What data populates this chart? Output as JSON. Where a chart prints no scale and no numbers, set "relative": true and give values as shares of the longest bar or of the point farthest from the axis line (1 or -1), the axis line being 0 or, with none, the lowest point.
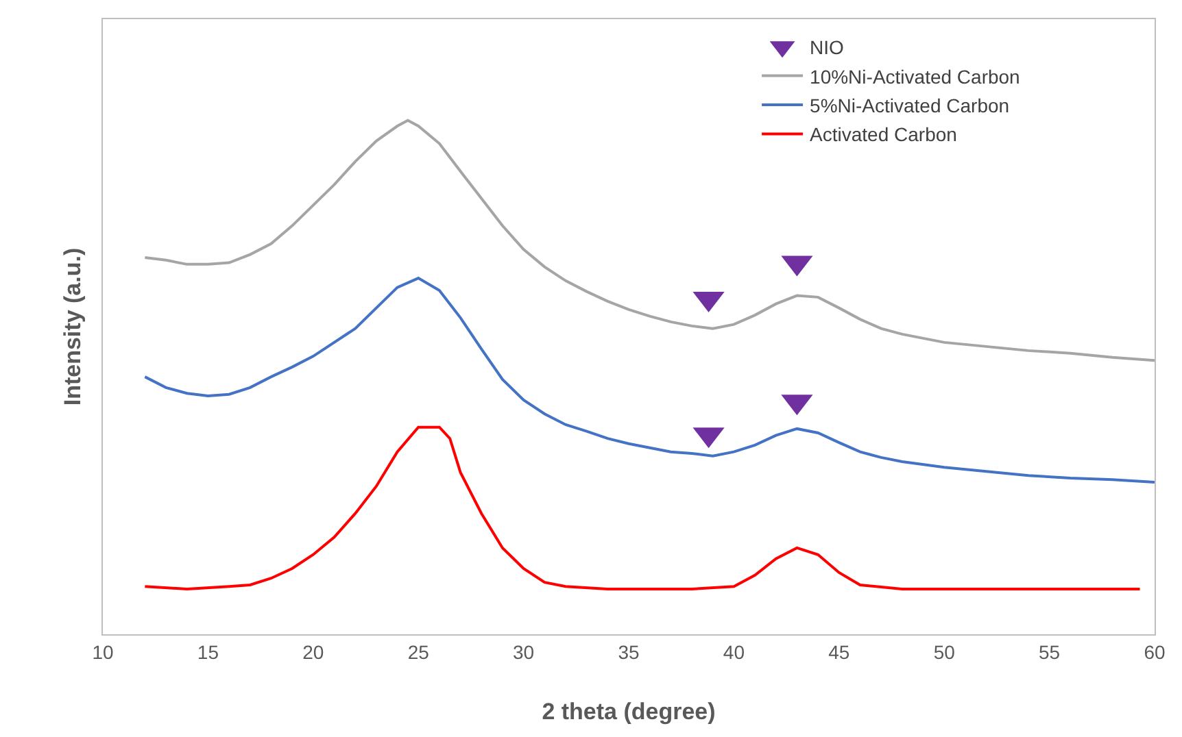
{
  "chart_data": {
    "type": "line",
    "relative": true,
    "xlabel": "2 theta (degree)",
    "ylabel": "Intensity (a.u.)",
    "xlim": [
      10,
      60
    ],
    "xticks": [
      10,
      15,
      20,
      25,
      30,
      35,
      40,
      45,
      50,
      55,
      60
    ],
    "legend": "top right",
    "marker": "none",
    "line_style": "solid",
    "series": [
      {
        "name": "NIO",
        "type": "scatter",
        "marker": "triangle",
        "color": "#7030a0",
        "x": [
          38.8,
          43,
          38.8,
          43
        ],
        "values": [
          0.653,
          0.723,
          0.389,
          0.453
        ]
      },
      {
        "name": "10%Ni-Activated Carbon",
        "color": "#a5a5a5",
        "x": [
          12,
          13,
          14,
          15,
          16,
          17,
          18,
          19,
          20,
          21,
          22,
          23,
          24,
          24.5,
          25,
          26,
          27,
          28,
          29,
          30,
          31,
          32,
          33,
          34,
          35,
          36,
          37,
          38,
          39,
          40,
          41,
          42,
          43,
          44,
          45,
          46,
          47,
          48,
          49,
          50,
          52,
          54,
          56,
          58,
          60
        ],
        "values": [
          0.733,
          0.728,
          0.72,
          0.72,
          0.723,
          0.739,
          0.76,
          0.795,
          0.835,
          0.875,
          0.92,
          0.96,
          0.989,
          1,
          0.989,
          0.955,
          0.901,
          0.848,
          0.795,
          0.749,
          0.715,
          0.688,
          0.667,
          0.648,
          0.632,
          0.619,
          0.608,
          0.6,
          0.595,
          0.603,
          0.621,
          0.643,
          0.659,
          0.656,
          0.635,
          0.613,
          0.595,
          0.584,
          0.576,
          0.568,
          0.56,
          0.552,
          0.547,
          0.539,
          0.533
        ]
      },
      {
        "name": "5%Ni-Activated Carbon",
        "color": "#4472c4",
        "x": [
          12,
          13,
          14,
          15,
          16,
          17,
          18,
          19,
          20,
          21,
          22,
          23,
          24,
          25,
          26,
          27,
          28,
          29,
          30,
          31,
          32,
          33,
          34,
          35,
          36,
          37,
          38,
          39,
          40,
          41,
          42,
          43,
          44,
          45,
          46,
          47,
          48,
          50,
          52,
          54,
          56,
          58,
          60
        ],
        "values": [
          0.501,
          0.48,
          0.469,
          0.464,
          0.467,
          0.48,
          0.501,
          0.52,
          0.541,
          0.568,
          0.595,
          0.635,
          0.675,
          0.693,
          0.669,
          0.616,
          0.555,
          0.496,
          0.456,
          0.429,
          0.408,
          0.395,
          0.381,
          0.371,
          0.363,
          0.355,
          0.352,
          0.347,
          0.355,
          0.368,
          0.387,
          0.4,
          0.392,
          0.373,
          0.355,
          0.344,
          0.336,
          0.325,
          0.317,
          0.309,
          0.304,
          0.301,
          0.296
        ]
      },
      {
        "name": "Activated Carbon",
        "color": "#ff0000",
        "x": [
          12,
          14,
          16,
          17,
          18,
          19,
          20,
          21,
          22,
          23,
          24,
          25,
          26,
          26.5,
          27,
          28,
          29,
          30,
          31,
          32,
          34,
          36,
          38,
          40,
          41,
          42,
          43,
          44,
          45,
          46,
          48,
          50,
          55,
          59.3
        ],
        "values": [
          0.093,
          0.088,
          0.093,
          0.096,
          0.109,
          0.128,
          0.155,
          0.189,
          0.235,
          0.288,
          0.355,
          0.403,
          0.403,
          0.381,
          0.315,
          0.235,
          0.168,
          0.128,
          0.101,
          0.093,
          0.088,
          0.088,
          0.088,
          0.093,
          0.115,
          0.147,
          0.168,
          0.155,
          0.12,
          0.096,
          0.088,
          0.088,
          0.088,
          0.088
        ]
      }
    ]
  }
}
